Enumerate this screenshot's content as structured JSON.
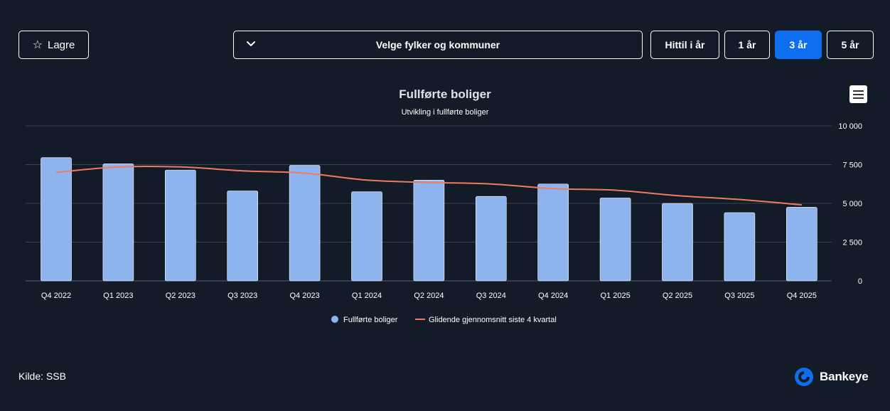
{
  "toolbar": {
    "save_label": "Lagre",
    "region_label": "Velge fylker og kommuner",
    "periods": [
      "Hittil i år",
      "1 år",
      "3 år",
      "5 år"
    ],
    "active_period": "3 år"
  },
  "chart_data": {
    "type": "bar",
    "title": "Fullførte boliger",
    "subtitle": "Utvikling i fullførte boliger",
    "categories": [
      "Q4 2022",
      "Q1 2023",
      "Q2 2023",
      "Q3 2023",
      "Q4 2023",
      "Q1 2024",
      "Q2 2024",
      "Q3 2024",
      "Q4 2024",
      "Q1 2025",
      "Q2 2025",
      "Q3 2025",
      "Q4 2025"
    ],
    "series": [
      {
        "name": "Fullførte boliger",
        "type": "bar",
        "color": "#8db4ec",
        "values": [
          7950,
          7550,
          7150,
          5800,
          7450,
          5750,
          6500,
          5450,
          6250,
          5350,
          5000,
          4400,
          4750
        ]
      },
      {
        "name": "Glidende gjennomsnitt siste 4 kvartal",
        "type": "line",
        "color": "#f07a62",
        "values": [
          7000,
          7350,
          7350,
          7100,
          6950,
          6500,
          6350,
          6250,
          5950,
          5850,
          5500,
          5250,
          4900
        ]
      }
    ],
    "y_ticks": [
      "0",
      "2 500",
      "5 000",
      "7 500",
      "10 000"
    ],
    "ylim": [
      0,
      10000
    ],
    "grid": true,
    "y_axis_position": "right",
    "legend_position": "bottom-center"
  },
  "footer": {
    "source": "Kilde: SSB",
    "brand": "Bankeye",
    "brand_color": "#0d6ff0"
  }
}
